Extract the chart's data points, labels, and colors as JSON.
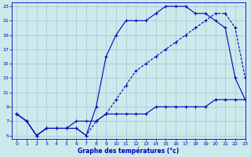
{
  "title": "Graphe des températures (°c)",
  "bg_color": "#cce9ec",
  "grid_color": "#a8cdd1",
  "line_color": "#0000bb",
  "xlim": [
    -0.5,
    23
  ],
  "ylim": [
    4.5,
    23.5
  ],
  "xticks": [
    0,
    1,
    2,
    3,
    4,
    5,
    6,
    7,
    8,
    9,
    10,
    11,
    12,
    13,
    14,
    15,
    16,
    17,
    18,
    19,
    20,
    21,
    22,
    23
  ],
  "yticks": [
    5,
    7,
    9,
    11,
    13,
    15,
    17,
    19,
    21,
    23
  ],
  "line1_x": [
    0,
    1,
    2,
    3,
    4,
    5,
    6,
    7,
    8,
    9,
    10,
    11,
    12,
    13,
    14,
    15,
    16,
    17,
    18,
    19,
    20,
    21,
    22,
    23
  ],
  "line1_y": [
    8,
    7,
    5,
    6,
    6,
    6,
    6,
    5,
    9,
    16,
    19,
    21,
    21,
    21,
    22,
    23,
    23,
    23,
    22,
    22,
    21,
    20,
    13,
    10
  ],
  "line2_x": [
    0,
    1,
    2,
    3,
    4,
    5,
    6,
    7,
    8,
    9,
    10,
    11,
    12,
    13,
    14,
    15,
    16,
    17,
    18,
    19,
    20,
    21,
    22,
    23
  ],
  "line2_y": [
    8,
    7,
    5,
    6,
    6,
    6,
    6,
    5,
    7,
    8,
    10,
    12,
    14,
    15,
    16,
    17,
    18,
    19,
    20,
    21,
    22,
    22,
    20,
    13
  ],
  "line3_x": [
    0,
    1,
    2,
    3,
    4,
    5,
    6,
    7,
    8,
    9,
    10,
    11,
    12,
    13,
    14,
    15,
    16,
    17,
    18,
    19,
    20,
    21,
    22,
    23
  ],
  "line3_y": [
    8,
    7,
    5,
    6,
    6,
    6,
    7,
    7,
    7,
    8,
    8,
    8,
    8,
    8,
    9,
    9,
    9,
    9,
    9,
    9,
    10,
    10,
    10,
    10
  ]
}
